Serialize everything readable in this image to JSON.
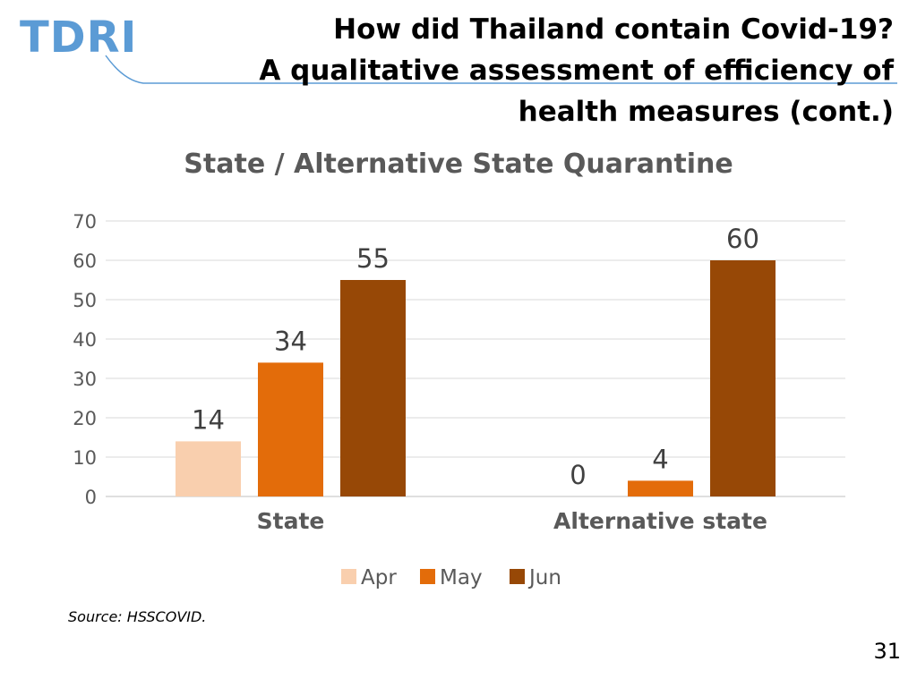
{
  "slide": {
    "logo_text": "TDRI",
    "title": "How did Thailand contain Covid-19?\nA qualitative assessment of efficiency of\nhealth measures (cont.)",
    "source": "Source: HSSCOVID.",
    "page_number": "31"
  },
  "colors": {
    "logo": "#5b9bd5",
    "rule": "#5b9bd5",
    "apr": "#f9cfae",
    "may": "#e36c0a",
    "jun": "#974806",
    "title_gray": "#595959",
    "grid": "#d9d9d9"
  },
  "chart_data": {
    "type": "bar",
    "title": "State / Alternative State Quarantine",
    "xlabel": "",
    "ylabel": "",
    "categories": [
      "State",
      "Alternative state"
    ],
    "series": [
      {
        "name": "Apr",
        "values": [
          14,
          0
        ]
      },
      {
        "name": "May",
        "values": [
          34,
          4
        ]
      },
      {
        "name": "Jun",
        "values": [
          55,
          60
        ]
      }
    ],
    "ylim": [
      0,
      70
    ],
    "yticks": [
      0,
      10,
      20,
      30,
      40,
      50,
      60,
      70
    ],
    "grid": true,
    "data_labels": true,
    "legend_position": "bottom"
  }
}
